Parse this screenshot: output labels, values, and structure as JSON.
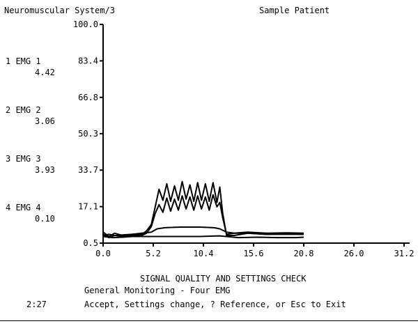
{
  "header": {
    "screen_title": "Neuromuscular System/3",
    "patient": "Sample Patient"
  },
  "channels": [
    {
      "label": "1 EMG 1",
      "value": "4.42"
    },
    {
      "label": "2 EMG 2",
      "value": "3.06"
    },
    {
      "label": "3 EMG 3",
      "value": "3.93"
    },
    {
      "label": "4 EMG 4",
      "value": "0.10"
    }
  ],
  "footer": {
    "title": "SIGNAL QUALITY AND SETTINGS CHECK",
    "mode": "General Monitoring - Four EMG",
    "elapsed": "2:27",
    "prompt": "Accept, Settings change, ? Reference, or Esc to Exit"
  },
  "chart_data": {
    "type": "line",
    "title": "",
    "xlabel": "",
    "ylabel": "",
    "xlim": [
      0,
      31.2
    ],
    "ylim": [
      0.5,
      100.0
    ],
    "x_ticks": [
      "0.0",
      "5.2",
      "10.4",
      "15.6",
      "20.8",
      "26.0",
      "31.2"
    ],
    "y_ticks": [
      "0.5",
      "17.1",
      "33.7",
      "50.3",
      "66.8",
      "83.4",
      "100.0"
    ],
    "grid": false,
    "series": [
      {
        "x": [
          0,
          0.6,
          1.2,
          2,
          3,
          4,
          4.5,
          5,
          5.4,
          5.8,
          6.2,
          6.6,
          7,
          7.4,
          7.8,
          8.2,
          8.6,
          9,
          9.4,
          9.8,
          10.2,
          10.6,
          11,
          11.4,
          11.8,
          12.1,
          12.4,
          12.8,
          13.6,
          15,
          17,
          19,
          20.8
        ],
        "values": [
          5.5,
          3.5,
          5.0,
          4.0,
          4.5,
          4.5,
          6.0,
          9.0,
          17.0,
          25.0,
          20.0,
          27.5,
          19.5,
          26.5,
          20.0,
          28.5,
          20.5,
          27.0,
          19.5,
          28.0,
          20.0,
          27.5,
          19.5,
          28.0,
          19.0,
          26.0,
          14.0,
          4.0,
          4.0,
          5.0,
          4.5,
          4.8,
          4.5
        ]
      },
      {
        "x": [
          0,
          0.6,
          1.2,
          2,
          3,
          4,
          4.5,
          5,
          5.4,
          5.8,
          6.2,
          6.6,
          7,
          7.4,
          7.8,
          8.2,
          8.6,
          9,
          9.4,
          9.8,
          10.2,
          10.6,
          11,
          11.4,
          11.8,
          12.1,
          12.4,
          12.8,
          13.6,
          15,
          17,
          19,
          20.8
        ],
        "values": [
          4.5,
          3.0,
          4.0,
          3.5,
          4.0,
          4.0,
          5.0,
          8.0,
          14.0,
          18.0,
          14.5,
          21.0,
          15.0,
          20.5,
          15.5,
          22.0,
          16.0,
          21.5,
          15.5,
          22.0,
          16.0,
          21.5,
          15.5,
          22.5,
          17.0,
          19.0,
          12.0,
          4.5,
          5.0,
          5.5,
          5.0,
          5.2,
          5.0
        ]
      },
      {
        "x": [
          0,
          0.6,
          1.2,
          2,
          3,
          4,
          5,
          5.6,
          6.4,
          8,
          10,
          11.5,
          12.1,
          12.8,
          13.6,
          15,
          17,
          19,
          20.8
        ],
        "values": [
          4.0,
          4.5,
          4.0,
          4.2,
          4.5,
          5.0,
          5.5,
          7.0,
          7.5,
          7.8,
          7.8,
          7.5,
          7.0,
          5.5,
          5.0,
          5.0,
          4.5,
          4.5,
          4.5
        ]
      },
      {
        "x": [
          0,
          1,
          2,
          3,
          4,
          5,
          6,
          8,
          10,
          12,
          12.8,
          14,
          16,
          18,
          20,
          20.8
        ],
        "values": [
          3.5,
          3.0,
          3.2,
          3.5,
          3.5,
          3.5,
          3.5,
          3.5,
          3.5,
          3.8,
          3.5,
          3.0,
          3.2,
          3.0,
          3.0,
          3.2
        ]
      }
    ]
  }
}
